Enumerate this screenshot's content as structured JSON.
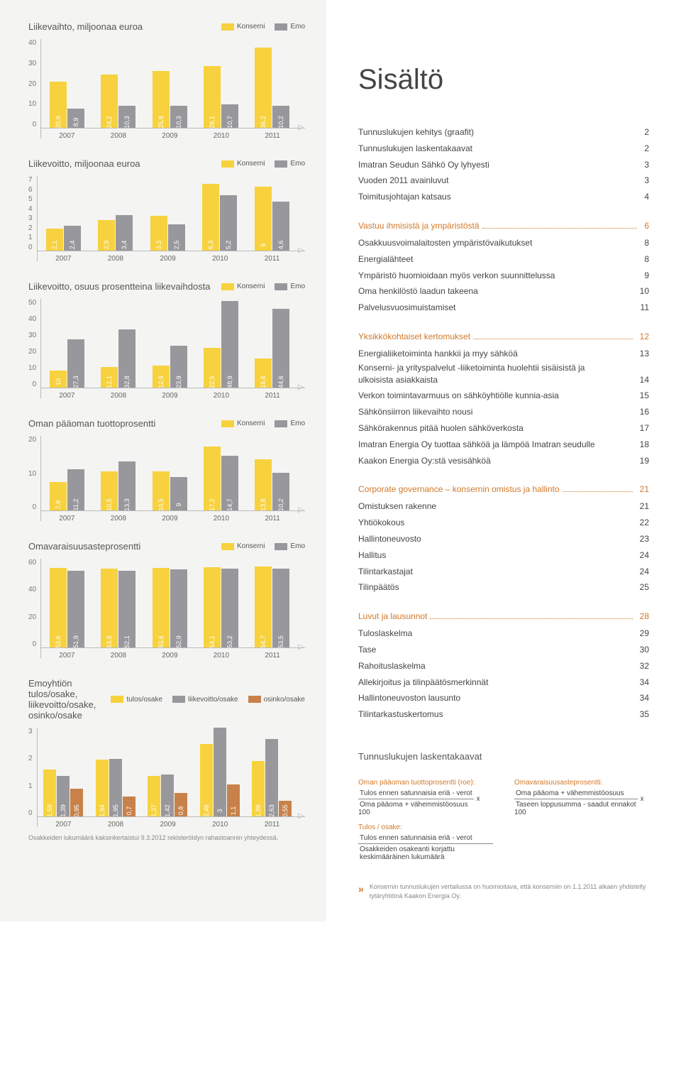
{
  "colors": {
    "konserni": "#f7d23e",
    "emo": "#98989c",
    "osinko": "#c8814a",
    "accent": "#d1792b"
  },
  "legend": {
    "konserni": "Konserni",
    "emo": "Emo",
    "tulos": "tulos/osake",
    "liike": "liikevoitto/osake",
    "osinko": "osinko/osake"
  },
  "years": [
    "2007",
    "2008",
    "2009",
    "2010",
    "2011"
  ],
  "charts": {
    "c1": {
      "title": "Liikevaihto, miljoonaa euroa",
      "ymax": 40,
      "yticks": [
        "40",
        "30",
        "20",
        "10",
        "0"
      ],
      "a": [
        20.8,
        24.2,
        25.8,
        28.1,
        36.2
      ],
      "b": [
        8.9,
        10.3,
        10.3,
        10.7,
        10.2
      ]
    },
    "c2": {
      "title": "Liikevoitto, miljoonaa euroa",
      "ymax": 7,
      "yticks": [
        "7",
        "6",
        "5",
        "4",
        "3",
        "2",
        "1",
        "0"
      ],
      "a": [
        2.1,
        2.9,
        3.3,
        6.3,
        6.0
      ],
      "b": [
        2.4,
        3.4,
        2.5,
        5.2,
        4.6
      ]
    },
    "c3": {
      "title": "Liikevoitto, osuus prosentteina liikevaihdosta",
      "ymax": 50,
      "yticks": [
        "50",
        "40",
        "30",
        "20",
        "10",
        "0"
      ],
      "a": [
        10.0,
        12.1,
        12.9,
        22.5,
        16.6
      ],
      "b": [
        27.3,
        32.8,
        23.9,
        48.9,
        44.6
      ]
    },
    "c4": {
      "title": "Oman pääoman tuottoprosentti",
      "ymax": 20,
      "yticks": [
        "20",
        "10",
        "0"
      ],
      "a": [
        7.8,
        10.5,
        10.5,
        17.2,
        13.8
      ],
      "b": [
        11.2,
        13.3,
        9.0,
        14.7,
        10.2
      ]
    },
    "c5": {
      "title": "Omavaraisuusasteprosentti",
      "ymax": 60,
      "yticks": [
        "60",
        "40",
        "20",
        "0"
      ],
      "a": [
        53.6,
        53.5,
        53.6,
        54.1,
        54.7
      ],
      "b": [
        51.9,
        52.1,
        52.9,
        53.2,
        53.5
      ]
    },
    "c6": {
      "title": "Emoyhtiön tulos/osake,\nliikevoitto/osake, osinko/osake",
      "ymax": 3,
      "yticks": [
        "3",
        "2",
        "1",
        "0"
      ],
      "a": [
        1.59,
        1.94,
        1.37,
        2.46,
        1.89
      ],
      "b": [
        1.39,
        1.95,
        1.42,
        3.0,
        2.63
      ],
      "c": [
        0.95,
        0.7,
        0.8,
        1.1,
        0.55
      ],
      "footnote": "Osakkeiden lukumäärä kaksinkertaistui 9.3.2012 rekisteröidyn rahastoannin yhteydessä."
    }
  },
  "sisalto_title": "Sisältö",
  "toc_plain_1": [
    {
      "label": "Tunnuslukujen kehitys (graafit)",
      "page": "2"
    },
    {
      "label": "Tunnuslukujen laskentakaavat",
      "page": "2"
    },
    {
      "label": "Imatran Seudun Sähkö Oy lyhyesti",
      "page": "3"
    },
    {
      "label": "Vuoden 2011 avainluvut",
      "page": "3"
    },
    {
      "label": "Toimitusjohtajan katsaus",
      "page": "4"
    }
  ],
  "sections": [
    {
      "heading": "Vastuu ihmisistä ja ympäristöstä",
      "page": "6",
      "items": [
        {
          "label": "Osakkuusvoimalaitosten ympäristövaikutukset",
          "page": "8"
        },
        {
          "label": "Energialähteet",
          "page": "8"
        },
        {
          "label": "Ympäristö huomioidaan myös verkon suunnittelussa",
          "page": "9"
        },
        {
          "label": "Oma henkilöstö laadun takeena",
          "page": "10"
        },
        {
          "label": "Palvelusvuosimuistamiset",
          "page": "11"
        }
      ]
    },
    {
      "heading": "Yksikkökohtaiset kertomukset",
      "page": "12",
      "items": [
        {
          "label": "Energialiiketoiminta hankkii ja myy sähköä",
          "page": "13"
        },
        {
          "label": "Konserni- ja yrityspalvelut -liiketoiminta huolehtii sisäisistä ja ulkoisista asiakkaista",
          "page": "14",
          "multi": true
        },
        {
          "label": "Verkon toimintavarmuus on sähköyhtiölle kunnia-asia",
          "page": "15"
        },
        {
          "label": "Sähkönsiirron liikevaihto nousi",
          "page": "16"
        },
        {
          "label": "Sähkörakennus pitää huolen sähköverkosta",
          "page": "17"
        },
        {
          "label": "Imatran Energia Oy tuottaa sähköä ja lämpöä Imatran seudulle",
          "page": "18",
          "multi": true
        },
        {
          "label": "Kaakon Energia Oy:stä vesisähköä",
          "page": "19"
        }
      ]
    },
    {
      "heading": "Corporate governance – konsernin omistus ja hallinto",
      "page": "21",
      "items": [
        {
          "label": "Omistuksen rakenne",
          "page": "21"
        },
        {
          "label": "Yhtiökokous",
          "page": "22"
        },
        {
          "label": "Hallintoneuvosto",
          "page": "23"
        },
        {
          "label": "Hallitus",
          "page": "24"
        },
        {
          "label": "Tilintarkastajat",
          "page": "24"
        },
        {
          "label": "Tilinpäätös",
          "page": "25"
        }
      ]
    },
    {
      "heading": "Luvut ja lausunnot",
      "page": "28",
      "items": [
        {
          "label": "Tuloslaskelma",
          "page": "29"
        },
        {
          "label": "Tase",
          "page": "30"
        },
        {
          "label": "Rahoituslaskelma",
          "page": "32"
        },
        {
          "label": "Allekirjoitus ja tilinpäätösmerkinnät",
          "page": "34"
        },
        {
          "label": "Hallintoneuvoston lausunto",
          "page": "34"
        },
        {
          "label": "Tilintarkastuskertomus",
          "page": "35"
        }
      ]
    }
  ],
  "formulas": {
    "title": "Tunnuslukujen laskentakaavat",
    "f1": {
      "head": "Oman pääoman tuottoprosentti (roe):",
      "num": "Tulos ennen satunnaisia eriä - verot",
      "den": "Oma pääoma + vähemmistöosuus",
      "suffix": "x 100"
    },
    "f2": {
      "head": "Omavaraisuusasteprosentti:",
      "num": "Oma pääoma + vähemmistöosuus",
      "den": "Taseen loppusumma - saadut ennakot",
      "suffix": "x 100"
    },
    "f3": {
      "head": "Tulos / osake:",
      "num": "Tulos ennen satunnaisia eriä - verot",
      "den": "Osakkeiden osakeanti korjattu keskimääräinen lukumäärä"
    }
  },
  "endnote": "Konsernin tunnuslukujen vertailussa on huomioitava, että konserniin on 1.1.2011 alkaen yhdistelty tytäryhtiönä Kaakon Energia Oy."
}
